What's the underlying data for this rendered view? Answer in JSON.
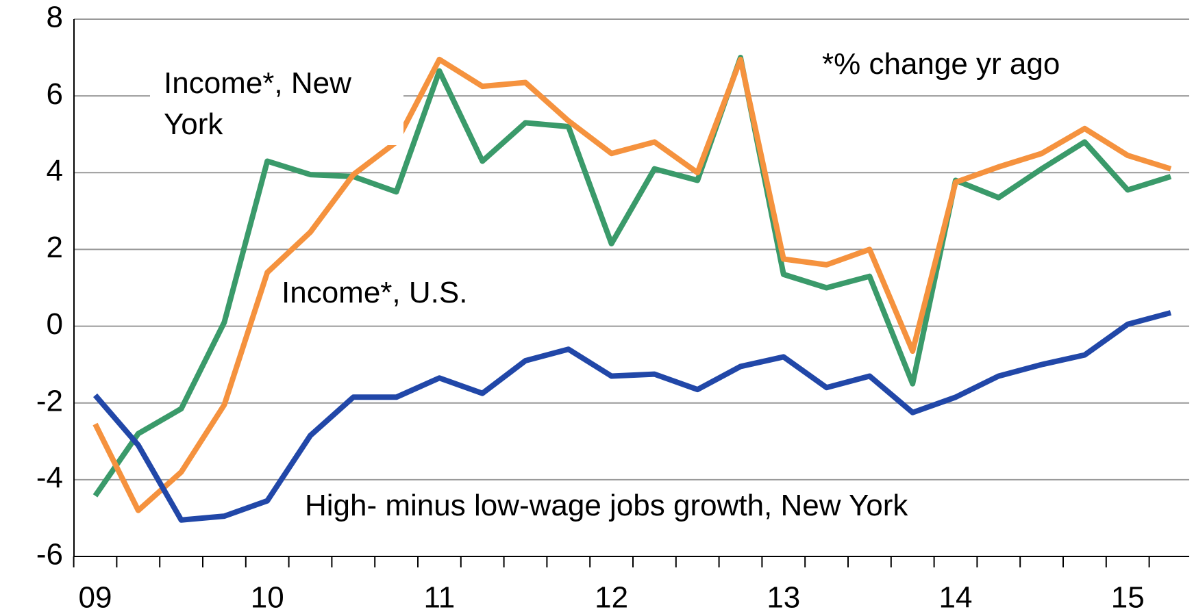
{
  "chart_data": {
    "type": "line",
    "categories": [
      "09",
      null,
      null,
      null,
      "10",
      null,
      null,
      null,
      "11",
      null,
      null,
      null,
      "12",
      null,
      null,
      null,
      "13",
      null,
      null,
      null,
      "14",
      null,
      null,
      null,
      "15",
      null
    ],
    "series": [
      {
        "name": "Income*, New York",
        "color": "#3a9a6a",
        "values": [
          -4.42,
          -2.8,
          -2.15,
          0.1,
          4.3,
          3.95,
          3.9,
          3.5,
          6.65,
          4.3,
          5.3,
          5.2,
          2.15,
          4.1,
          3.8,
          7.0,
          1.35,
          1.0,
          1.3,
          -1.5,
          3.8,
          3.35,
          4.1,
          4.8,
          3.55,
          3.9
        ]
      },
      {
        "name": "Income*, U.S.",
        "color": "#f5923e",
        "values": [
          -2.55,
          -4.8,
          -3.8,
          -2.05,
          1.4,
          2.45,
          3.95,
          4.8,
          6.95,
          6.25,
          6.35,
          5.35,
          4.5,
          4.8,
          4.0,
          6.95,
          1.75,
          1.6,
          2.0,
          -0.65,
          3.75,
          4.15,
          4.5,
          5.15,
          4.45,
          4.1
        ]
      },
      {
        "name": "High- minus low-wage jobs growth, New York",
        "color": "#2147a8",
        "values": [
          -1.8,
          -3.1,
          -5.05,
          -4.95,
          -4.55,
          -2.85,
          -1.85,
          -1.85,
          -1.35,
          -1.75,
          -0.9,
          -0.6,
          -1.3,
          -1.25,
          -1.65,
          -1.05,
          -0.8,
          -1.6,
          -1.3,
          -2.25,
          -1.85,
          -1.3,
          -1.0,
          -0.75,
          0.05,
          0.35
        ]
      }
    ],
    "annotations": [
      "*% change yr ago"
    ],
    "ylim": [
      -6,
      8
    ],
    "yticks": [
      -6,
      -4,
      -2,
      0,
      2,
      4,
      6,
      8
    ],
    "grid": true
  }
}
